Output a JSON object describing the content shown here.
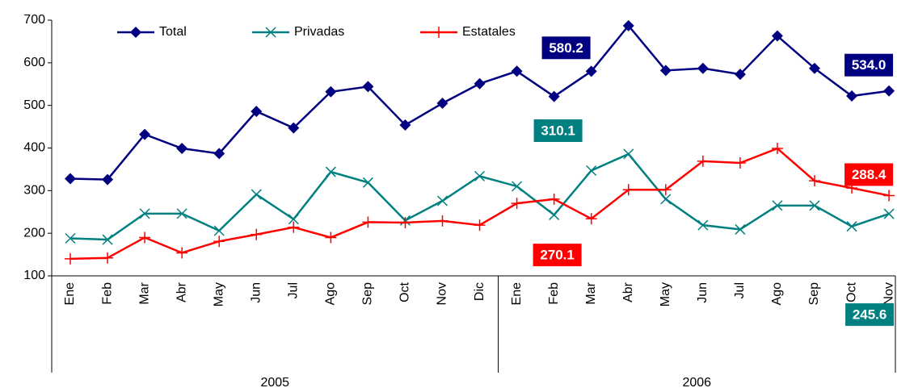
{
  "chart_data": {
    "type": "line",
    "category_groups": [
      {
        "name": "2005",
        "categories": [
          "Ene",
          "Feb",
          "Mar",
          "Abr",
          "May",
          "Jun",
          "Jul",
          "Ago",
          "Sep",
          "Oct",
          "Nov",
          "Dic"
        ]
      },
      {
        "name": "2006",
        "categories": [
          "Ene",
          "Feb",
          "Mar",
          "Abr",
          "May",
          "Jun",
          "Jul",
          "Ago",
          "Sep",
          "Oct",
          "Nov"
        ]
      }
    ],
    "series": [
      {
        "name": "Total",
        "color": "#000080",
        "marker": "diamond",
        "values": [
          328,
          326,
          432,
          399,
          387,
          486,
          447,
          532,
          544,
          454,
          505,
          551,
          580.2,
          521,
          580,
          687,
          582,
          587,
          573,
          663,
          587,
          522,
          534.0
        ],
        "value_labels": [
          null,
          null,
          null,
          null,
          null,
          null,
          null,
          null,
          null,
          null,
          null,
          null,
          "580.2",
          null,
          null,
          null,
          null,
          null,
          null,
          null,
          null,
          null,
          "534.0"
        ]
      },
      {
        "name": "Privadas",
        "color": "#008080",
        "marker": "x",
        "values": [
          188,
          185,
          246,
          246,
          206,
          291,
          233,
          344,
          319,
          230,
          276,
          334,
          310.1,
          243,
          347,
          386,
          280,
          219,
          209,
          265,
          265,
          216,
          245.6
        ],
        "value_labels": [
          null,
          null,
          null,
          null,
          null,
          null,
          null,
          null,
          null,
          null,
          null,
          null,
          "310.1",
          null,
          null,
          null,
          null,
          null,
          null,
          null,
          null,
          null,
          "245.6"
        ]
      },
      {
        "name": "Estatales",
        "color": "#ff0000",
        "marker": "plus",
        "values": [
          140,
          142,
          190,
          154,
          181,
          197,
          214,
          190,
          226,
          225,
          229,
          219,
          270.1,
          280,
          234,
          302,
          302,
          369,
          365,
          399,
          323,
          306,
          288.4
        ],
        "value_labels": [
          null,
          null,
          null,
          null,
          null,
          null,
          null,
          null,
          null,
          null,
          null,
          null,
          "270.1",
          null,
          null,
          null,
          null,
          null,
          null,
          null,
          null,
          null,
          "288.4"
        ]
      }
    ],
    "ylim": [
      100,
      700
    ],
    "yticks": [
      100,
      200,
      300,
      400,
      500,
      600,
      700
    ],
    "grid": false
  }
}
